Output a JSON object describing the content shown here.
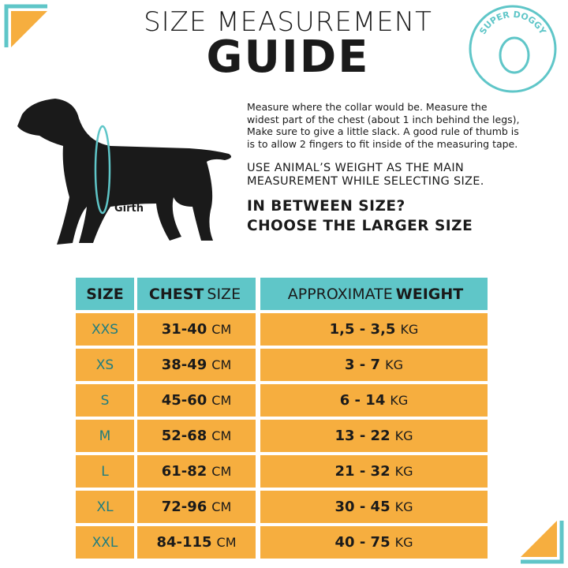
{
  "header": {
    "title_line1": "SIZE MEASUREMENT",
    "title_line2": "GUIDE"
  },
  "logo": {
    "text": "SUPER DOGGY"
  },
  "illustration": {
    "label": "Girth"
  },
  "instructions": {
    "paragraph": [
      "Measure where the collar would be. Measure the",
      "widest part of the chest (about 1 inch behind the legs),",
      "Make sure to give a little slack. A good rule of thumb is",
      "is to allow 2 fingers to fit inside of the measuring tape."
    ],
    "note": [
      "USE ANIMAL’S WEIGHT AS THE MAIN",
      "MEASUREMENT WHILE SELECTING SIZE."
    ],
    "tip": [
      "IN BETWEEN SIZE?",
      "CHOOSE THE LARGER SIZE"
    ]
  },
  "table": {
    "headers": [
      {
        "bold": "SIZE"
      },
      {
        "bold": "CHEST",
        "light": "SIZE"
      },
      {
        "light": "APPROXIMATE",
        "bold": "WEIGHT"
      }
    ],
    "rows": [
      {
        "size": "XXS",
        "chest": "31-40",
        "chest_unit": "CM",
        "weight": "1,5 - 3,5",
        "weight_unit": "KG"
      },
      {
        "size": "XS",
        "chest": "38-49",
        "chest_unit": "CM",
        "weight": "3 - 7",
        "weight_unit": "KG"
      },
      {
        "size": "S",
        "chest": "45-60",
        "chest_unit": "CM",
        "weight": "6 - 14",
        "weight_unit": "KG"
      },
      {
        "size": "M",
        "chest": "52-68",
        "chest_unit": "CM",
        "weight": "13 - 22",
        "weight_unit": "KG"
      },
      {
        "size": "L",
        "chest": "61-82",
        "chest_unit": "CM",
        "weight": "21 - 32",
        "weight_unit": "KG"
      },
      {
        "size": "XL",
        "chest": "72-96",
        "chest_unit": "CM",
        "weight": "30 - 45",
        "weight_unit": "KG"
      },
      {
        "size": "XXL",
        "chest": "84-115",
        "chest_unit": "CM",
        "weight": "40 - 75",
        "weight_unit": "KG"
      }
    ]
  }
}
